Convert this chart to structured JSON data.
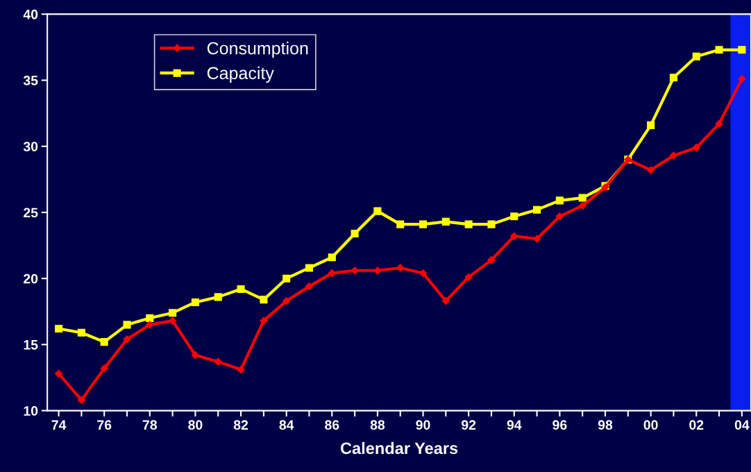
{
  "chart_data": {
    "type": "line",
    "xlabel": "Calendar Years",
    "x": [
      1974,
      1975,
      1976,
      1977,
      1978,
      1979,
      1980,
      1981,
      1982,
      1983,
      1984,
      1985,
      1986,
      1987,
      1988,
      1989,
      1990,
      1991,
      1992,
      1993,
      1994,
      1995,
      1996,
      1997,
      1998,
      1999,
      2000,
      2001,
      2002,
      2003,
      2004
    ],
    "series": [
      {
        "name": "Consumption",
        "color": "#ff0000",
        "marker": "diamond",
        "values": [
          12.8,
          10.8,
          13.2,
          15.4,
          16.5,
          16.8,
          14.2,
          13.7,
          13.1,
          16.8,
          18.3,
          19.4,
          20.4,
          20.6,
          20.6,
          20.8,
          20.4,
          18.3,
          20.1,
          21.4,
          23.2,
          23.0,
          24.7,
          25.5,
          26.9,
          29.0,
          28.2,
          29.3,
          29.9,
          31.7,
          35.1
        ]
      },
      {
        "name": "Capacity",
        "color": "#ffff00",
        "marker": "square",
        "values": [
          16.2,
          15.9,
          15.2,
          16.5,
          17.0,
          17.4,
          18.2,
          18.6,
          19.2,
          18.4,
          20.0,
          20.8,
          21.6,
          23.4,
          25.1,
          24.1,
          24.1,
          24.3,
          24.1,
          24.1,
          24.7,
          25.2,
          25.9,
          26.1,
          27.0,
          29.0,
          31.6,
          35.2,
          36.8,
          37.3,
          37.3
        ]
      }
    ],
    "xlim": [
      1973.5,
      2004.4
    ],
    "xticks": [
      {
        "value": 1974,
        "label": "74"
      },
      {
        "value": 1975,
        "label": null
      },
      {
        "value": 1976,
        "label": "76"
      },
      {
        "value": 1977,
        "label": null
      },
      {
        "value": 1978,
        "label": "78"
      },
      {
        "value": 1979,
        "label": null
      },
      {
        "value": 1980,
        "label": "80"
      },
      {
        "value": 1981,
        "label": null
      },
      {
        "value": 1982,
        "label": "82"
      },
      {
        "value": 1983,
        "label": null
      },
      {
        "value": 1984,
        "label": "84"
      },
      {
        "value": 1985,
        "label": null
      },
      {
        "value": 1986,
        "label": "86"
      },
      {
        "value": 1987,
        "label": null
      },
      {
        "value": 1988,
        "label": "88"
      },
      {
        "value": 1989,
        "label": null
      },
      {
        "value": 1990,
        "label": "90"
      },
      {
        "value": 1991,
        "label": null
      },
      {
        "value": 1992,
        "label": "92"
      },
      {
        "value": 1993,
        "label": null
      },
      {
        "value": 1994,
        "label": "94"
      },
      {
        "value": 1995,
        "label": null
      },
      {
        "value": 1996,
        "label": "96"
      },
      {
        "value": 1997,
        "label": null
      },
      {
        "value": 1998,
        "label": "98"
      },
      {
        "value": 1999,
        "label": null
      },
      {
        "value": 2000,
        "label": "00"
      },
      {
        "value": 2001,
        "label": null
      },
      {
        "value": 2002,
        "label": "02"
      },
      {
        "value": 2003,
        "label": null
      },
      {
        "value": 2004,
        "label": "04"
      }
    ],
    "ylim": [
      10,
      40
    ],
    "yticks": [
      10,
      15,
      20,
      25,
      30,
      35,
      40
    ],
    "bands": [
      {
        "axis": "x",
        "from": 2003.5,
        "to": 2004.4,
        "color": "#0a1ef0"
      }
    ],
    "grid": false,
    "legend": "top left",
    "line_style": "solid"
  }
}
